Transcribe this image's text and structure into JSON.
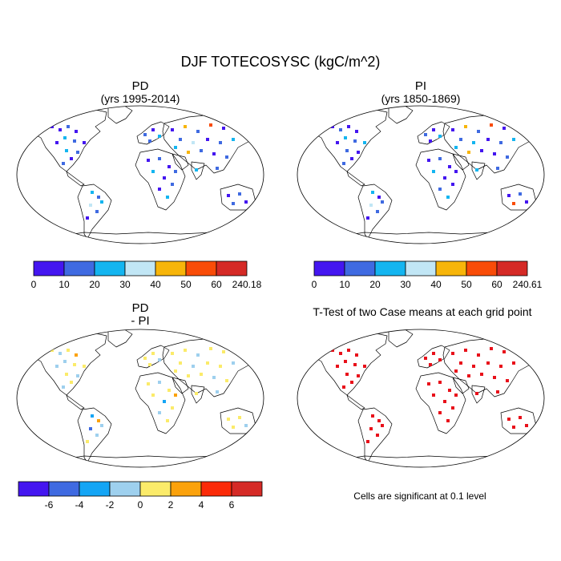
{
  "title": "DJF TOTECOSYSC (kgC/m^2)",
  "panels": [
    {
      "id": "pd",
      "title_line1": "PD",
      "title_line2": "(yrs 1995-2014)",
      "legend_colors": [
        "#4416f0",
        "#3f6ae1",
        "#14b5f0",
        "#c1e6f5",
        "#f7b50a",
        "#f94c08",
        "#d52a26"
      ],
      "legend_labels": [
        "0",
        "10",
        "20",
        "30",
        "40",
        "50",
        "60",
        "240.18"
      ]
    },
    {
      "id": "pi",
      "title_line1": "PI",
      "title_line2": "(yrs 1850-1869)",
      "legend_colors": [
        "#4416f0",
        "#3f6ae1",
        "#14b5f0",
        "#c1e6f5",
        "#f7b50a",
        "#f94c08",
        "#d52a26"
      ],
      "legend_labels": [
        "0",
        "10",
        "20",
        "30",
        "40",
        "50",
        "60",
        "240.61"
      ]
    },
    {
      "id": "diff",
      "title_line1": "PD",
      "title_line2": "- PI",
      "legend_colors": [
        "#4416f0",
        "#3f6ae1",
        "#14a5f5",
        "#9ed0ee",
        "#fbeb6a",
        "#fba20c",
        "#fb2a08",
        "#d52a26"
      ],
      "legend_labels": [
        "-6",
        "-4",
        "-2",
        "0",
        "2",
        "4",
        "6"
      ]
    },
    {
      "id": "ttest",
      "title_line1": "T-Test of two Case means at each grid point",
      "note": "Cells are significant at 0.1 level"
    }
  ],
  "colors": {
    "ttest_cell": "#e8101a",
    "coast": "#000000"
  }
}
